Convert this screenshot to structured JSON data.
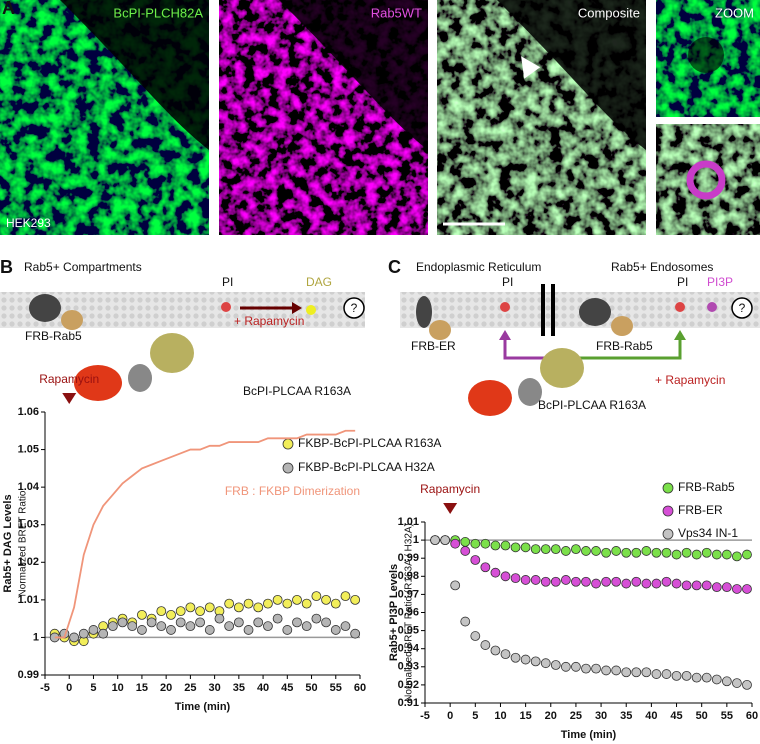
{
  "panel_a": {
    "letter": "A",
    "image_labels": [
      "BcPI-PLCH82A",
      "Rab5WT",
      "Composite",
      "ZOOM"
    ],
    "cell_line": "HEK293"
  },
  "panel_b": {
    "letter": "B",
    "title": "Rab5+ Compartments",
    "substrate": "PI",
    "product": "DAG",
    "treatment": "+ Rapamycin",
    "anchor": "FRB-Rab5",
    "enzyme": "BcPI-PLCAA R163A",
    "unknown": "?"
  },
  "panel_c": {
    "letter": "C",
    "left_title": "Endoplasmic Reticulum",
    "right_title": "Rab5+ Endosomes",
    "left_substrate": "PI",
    "right_substrate": "PI",
    "product": "PI3P",
    "left_anchor": "FRB-ER",
    "right_anchor": "FRB-Rab5",
    "treatment": "+ Rapamycin",
    "enzyme": "BcPI-PLCAA R163A",
    "unknown": "?"
  },
  "chart_data": [
    {
      "type": "line",
      "ylabel": "Rab5+ DAG Levels",
      "ylabel2": "Normalized BRET Ratio",
      "xlabel": "Time (min)",
      "annotation": {
        "text": "Rapamycin",
        "x": 0
      },
      "reference_line": 1,
      "xlim": [
        -5,
        60
      ],
      "xticks": [
        -5,
        0,
        5,
        10,
        15,
        20,
        25,
        30,
        35,
        40,
        45,
        50,
        55,
        60
      ],
      "ylim": [
        0.99,
        1.06
      ],
      "yticks": [
        0.99,
        1,
        1.01,
        1.02,
        1.03,
        1.04,
        1.05,
        1.06
      ],
      "x": [
        -3,
        -1,
        1,
        3,
        5,
        7,
        9,
        11,
        13,
        15,
        17,
        19,
        21,
        23,
        25,
        27,
        29,
        31,
        33,
        35,
        37,
        39,
        41,
        43,
        45,
        47,
        49,
        51,
        53,
        55,
        57,
        59
      ],
      "series": [
        {
          "name": "FKBP-BcPI-PLCAA R163A",
          "color": "#f2ee5a",
          "style": "markers",
          "values": [
            1.001,
            1.0,
            0.999,
            0.999,
            1.001,
            1.003,
            1.004,
            1.005,
            1.004,
            1.006,
            1.005,
            1.007,
            1.006,
            1.007,
            1.008,
            1.007,
            1.008,
            1.007,
            1.009,
            1.008,
            1.009,
            1.008,
            1.009,
            1.01,
            1.009,
            1.01,
            1.009,
            1.011,
            1.01,
            1.009,
            1.011,
            1.01
          ]
        },
        {
          "name": "FKBP-BcPI-PLCAA H32A",
          "color": "#b5b5b5",
          "style": "markers",
          "values": [
            1.0,
            1.001,
            1.0,
            1.001,
            1.002,
            1.001,
            1.003,
            1.004,
            1.003,
            1.002,
            1.004,
            1.003,
            1.002,
            1.004,
            1.003,
            1.004,
            1.002,
            1.005,
            1.003,
            1.004,
            1.002,
            1.004,
            1.003,
            1.005,
            1.002,
            1.004,
            1.003,
            1.005,
            1.004,
            1.002,
            1.003,
            1.001
          ]
        },
        {
          "name": "FRB : FKBP Dimerization",
          "color": "#f0957a",
          "style": "line",
          "values": [
            1.0,
            1.0,
            1.008,
            1.022,
            1.03,
            1.035,
            1.038,
            1.041,
            1.043,
            1.045,
            1.046,
            1.047,
            1.048,
            1.049,
            1.05,
            1.05,
            1.051,
            1.051,
            1.052,
            1.052,
            1.052,
            1.052,
            1.053,
            1.053,
            1.053,
            1.053,
            1.054,
            1.054,
            1.054,
            1.054,
            1.055,
            1.055
          ]
        }
      ]
    },
    {
      "type": "line",
      "ylabel": "Rab5+ PI3P Levels",
      "ylabel2": "Normalized BRET Ratio (R163A / H32A)",
      "xlabel": "Time (min)",
      "annotation": {
        "text": "Rapamycin",
        "x": 0
      },
      "reference_line": 1,
      "xlim": [
        -5,
        60
      ],
      "xticks": [
        -5,
        0,
        5,
        10,
        15,
        20,
        25,
        30,
        35,
        40,
        45,
        50,
        55,
        60
      ],
      "ylim": [
        0.91,
        1.01
      ],
      "yticks": [
        0.91,
        0.92,
        0.93,
        0.94,
        0.95,
        0.96,
        0.97,
        0.98,
        0.99,
        1,
        1.01
      ],
      "x": [
        -3,
        -1,
        1,
        3,
        5,
        7,
        9,
        11,
        13,
        15,
        17,
        19,
        21,
        23,
        25,
        27,
        29,
        31,
        33,
        35,
        37,
        39,
        41,
        43,
        45,
        47,
        49,
        51,
        53,
        55,
        57,
        59
      ],
      "series": [
        {
          "name": "FRB-Rab5",
          "color": "#7be04a",
          "style": "markers",
          "values": [
            1.0,
            1.0,
            1.0,
            0.999,
            0.998,
            0.998,
            0.997,
            0.997,
            0.996,
            0.996,
            0.995,
            0.995,
            0.995,
            0.994,
            0.995,
            0.994,
            0.994,
            0.993,
            0.994,
            0.993,
            0.993,
            0.994,
            0.993,
            0.993,
            0.992,
            0.993,
            0.992,
            0.993,
            0.992,
            0.992,
            0.991,
            0.992
          ]
        },
        {
          "name": "FRB-ER",
          "color": "#d64fd6",
          "style": "markers",
          "values": [
            1.0,
            1.0,
            0.998,
            0.994,
            0.989,
            0.985,
            0.982,
            0.98,
            0.979,
            0.978,
            0.978,
            0.977,
            0.977,
            0.978,
            0.977,
            0.977,
            0.976,
            0.977,
            0.977,
            0.976,
            0.977,
            0.976,
            0.976,
            0.977,
            0.976,
            0.975,
            0.975,
            0.975,
            0.974,
            0.974,
            0.973,
            0.973
          ]
        },
        {
          "name": "Vps34 IN-1",
          "color": "#c4c4c4",
          "style": "markers",
          "values": [
            1.0,
            1.0,
            0.975,
            0.955,
            0.947,
            0.942,
            0.939,
            0.937,
            0.935,
            0.934,
            0.933,
            0.932,
            0.931,
            0.93,
            0.93,
            0.929,
            0.929,
            0.928,
            0.928,
            0.927,
            0.927,
            0.927,
            0.926,
            0.926,
            0.925,
            0.925,
            0.924,
            0.924,
            0.923,
            0.922,
            0.921,
            0.92
          ]
        }
      ]
    }
  ]
}
